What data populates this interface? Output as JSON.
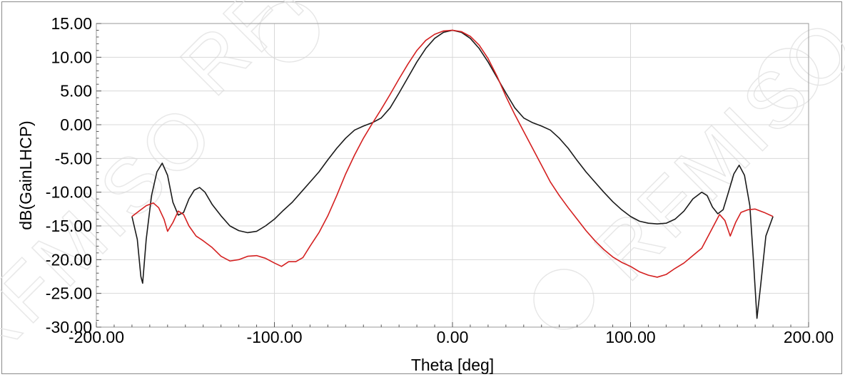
{
  "chart_data": {
    "type": "line",
    "xlabel": "Theta [deg]",
    "ylabel": "dB(GainLHCP)",
    "xlim": [
      -200,
      200
    ],
    "ylim": [
      -30,
      15
    ],
    "x_ticks": [
      "-200.00",
      "-100.00",
      "0.00",
      "100.00",
      "200.00"
    ],
    "y_ticks": [
      "15.00",
      "10.00",
      "5.00",
      "0.00",
      "-5.00",
      "-10.00",
      "-15.00",
      "-20.00",
      "-25.00",
      "-30.00"
    ],
    "x_tick_values": [
      -200,
      -100,
      0,
      100,
      200
    ],
    "y_tick_values": [
      15,
      10,
      5,
      0,
      -5,
      -10,
      -15,
      -20,
      -25,
      -30
    ],
    "grid": true,
    "series": [
      {
        "color": "#1a1a1a",
        "points": [
          [
            -180,
            -13.6
          ],
          [
            -177,
            -17
          ],
          [
            -175,
            -22.5
          ],
          [
            -174,
            -23.5
          ],
          [
            -172,
            -17
          ],
          [
            -169,
            -10.5
          ],
          [
            -166,
            -7
          ],
          [
            -163,
            -5.7
          ],
          [
            -160,
            -7.5
          ],
          [
            -157,
            -11.5
          ],
          [
            -154,
            -13.4
          ],
          [
            -151,
            -13
          ],
          [
            -148,
            -11
          ],
          [
            -145,
            -9.7
          ],
          [
            -142,
            -9.3
          ],
          [
            -139,
            -10
          ],
          [
            -135,
            -11.8
          ],
          [
            -130,
            -13.5
          ],
          [
            -125,
            -15
          ],
          [
            -120,
            -15.7
          ],
          [
            -115,
            -16
          ],
          [
            -110,
            -15.8
          ],
          [
            -105,
            -15
          ],
          [
            -100,
            -14
          ],
          [
            -95,
            -12.7
          ],
          [
            -90,
            -11.5
          ],
          [
            -85,
            -10
          ],
          [
            -80,
            -8.5
          ],
          [
            -75,
            -7
          ],
          [
            -70,
            -5.2
          ],
          [
            -65,
            -3.5
          ],
          [
            -60,
            -2
          ],
          [
            -55,
            -0.8
          ],
          [
            -50,
            -0.2
          ],
          [
            -45,
            0.3
          ],
          [
            -40,
            1
          ],
          [
            -35,
            2.5
          ],
          [
            -30,
            4.7
          ],
          [
            -25,
            7
          ],
          [
            -20,
            9.3
          ],
          [
            -15,
            11.3
          ],
          [
            -10,
            12.8
          ],
          [
            -5,
            13.7
          ],
          [
            0,
            14
          ],
          [
            5,
            13.7
          ],
          [
            10,
            12.8
          ],
          [
            15,
            11.3
          ],
          [
            20,
            9.3
          ],
          [
            25,
            7
          ],
          [
            30,
            4.7
          ],
          [
            35,
            2.5
          ],
          [
            40,
            1
          ],
          [
            45,
            0.3
          ],
          [
            50,
            -0.2
          ],
          [
            55,
            -0.8
          ],
          [
            60,
            -2
          ],
          [
            65,
            -3.5
          ],
          [
            70,
            -5.3
          ],
          [
            75,
            -7
          ],
          [
            80,
            -8.5
          ],
          [
            85,
            -10
          ],
          [
            90,
            -11.4
          ],
          [
            95,
            -12.6
          ],
          [
            100,
            -13.6
          ],
          [
            105,
            -14.3
          ],
          [
            110,
            -14.6
          ],
          [
            115,
            -14.7
          ],
          [
            120,
            -14.6
          ],
          [
            125,
            -14
          ],
          [
            130,
            -12.8
          ],
          [
            135,
            -11
          ],
          [
            140,
            -10
          ],
          [
            143,
            -10.5
          ],
          [
            146,
            -12.2
          ],
          [
            149,
            -13.2
          ],
          [
            152,
            -12.6
          ],
          [
            155,
            -10
          ],
          [
            158,
            -7.3
          ],
          [
            161,
            -6
          ],
          [
            164,
            -7.5
          ],
          [
            167,
            -12
          ],
          [
            169,
            -20
          ],
          [
            171,
            -28.7
          ],
          [
            173,
            -24
          ],
          [
            176,
            -16.5
          ],
          [
            180,
            -13.6
          ]
        ]
      },
      {
        "color": "#d42020",
        "points": [
          [
            -180,
            -13.6
          ],
          [
            -176,
            -12.8
          ],
          [
            -172,
            -12
          ],
          [
            -168,
            -11.6
          ],
          [
            -165,
            -12.3
          ],
          [
            -162,
            -14
          ],
          [
            -160,
            -15.8
          ],
          [
            -157,
            -14.5
          ],
          [
            -154,
            -12.8
          ],
          [
            -151,
            -13.3
          ],
          [
            -148,
            -15
          ],
          [
            -144,
            -16.5
          ],
          [
            -140,
            -17.2
          ],
          [
            -135,
            -18.2
          ],
          [
            -130,
            -19.5
          ],
          [
            -125,
            -20.2
          ],
          [
            -120,
            -20
          ],
          [
            -115,
            -19.5
          ],
          [
            -110,
            -19.4
          ],
          [
            -105,
            -19.8
          ],
          [
            -100,
            -20.5
          ],
          [
            -96,
            -21
          ],
          [
            -92,
            -20.3
          ],
          [
            -88,
            -20.3
          ],
          [
            -84,
            -19.7
          ],
          [
            -80,
            -18
          ],
          [
            -75,
            -16
          ],
          [
            -70,
            -13.5
          ],
          [
            -65,
            -10.5
          ],
          [
            -60,
            -7.3
          ],
          [
            -55,
            -4.5
          ],
          [
            -50,
            -2
          ],
          [
            -45,
            0.2
          ],
          [
            -40,
            2.3
          ],
          [
            -35,
            4.5
          ],
          [
            -30,
            6.8
          ],
          [
            -25,
            9
          ],
          [
            -20,
            11
          ],
          [
            -15,
            12.5
          ],
          [
            -10,
            13.4
          ],
          [
            -5,
            13.9
          ],
          [
            0,
            14
          ],
          [
            5,
            13.8
          ],
          [
            10,
            13.1
          ],
          [
            15,
            11.8
          ],
          [
            20,
            9.8
          ],
          [
            25,
            7.2
          ],
          [
            30,
            4.2
          ],
          [
            35,
            1.5
          ],
          [
            40,
            -1
          ],
          [
            45,
            -3.5
          ],
          [
            50,
            -6
          ],
          [
            55,
            -8.5
          ],
          [
            60,
            -10.5
          ],
          [
            65,
            -12.3
          ],
          [
            70,
            -14
          ],
          [
            75,
            -15.7
          ],
          [
            80,
            -17.2
          ],
          [
            85,
            -18.5
          ],
          [
            90,
            -19.6
          ],
          [
            95,
            -20.4
          ],
          [
            100,
            -21
          ],
          [
            105,
            -21.8
          ],
          [
            110,
            -22.3
          ],
          [
            115,
            -22.6
          ],
          [
            120,
            -22.2
          ],
          [
            125,
            -21.3
          ],
          [
            130,
            -20.5
          ],
          [
            135,
            -19.4
          ],
          [
            140,
            -18.3
          ],
          [
            145,
            -15.8
          ],
          [
            150,
            -13.3
          ],
          [
            153,
            -14.2
          ],
          [
            156,
            -16.5
          ],
          [
            159,
            -14.5
          ],
          [
            162,
            -13
          ],
          [
            166,
            -12.6
          ],
          [
            170,
            -12.5
          ],
          [
            175,
            -13
          ],
          [
            180,
            -13.6
          ]
        ]
      }
    ]
  }
}
